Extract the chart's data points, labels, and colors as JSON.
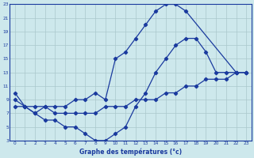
{
  "xlabel": "Graphe des températures (°c)",
  "bg_color": "#cde8ec",
  "line_color": "#1a3a9e",
  "grid_color": "#aac8cc",
  "xlim": [
    -0.5,
    23.5
  ],
  "ylim": [
    3,
    23
  ],
  "xticks": [
    0,
    1,
    2,
    3,
    4,
    5,
    6,
    7,
    8,
    9,
    10,
    11,
    12,
    13,
    14,
    15,
    16,
    17,
    18,
    19,
    20,
    21,
    22,
    23
  ],
  "yticks": [
    3,
    5,
    7,
    9,
    11,
    13,
    15,
    17,
    19,
    21,
    23
  ],
  "line1_x": [
    0,
    1,
    2,
    3,
    4,
    5,
    6,
    7,
    8,
    9,
    10,
    11,
    12,
    13,
    14,
    15,
    16,
    17,
    22,
    23
  ],
  "line1_y": [
    10,
    8,
    8,
    8,
    8,
    8,
    9,
    9,
    10,
    9,
    15,
    16,
    18,
    20,
    22,
    23,
    23,
    22,
    13,
    13
  ],
  "line2_x": [
    0,
    1,
    2,
    3,
    4,
    5,
    6,
    7,
    8,
    9,
    10,
    11,
    12,
    13,
    14,
    15,
    16,
    17,
    18,
    19,
    20,
    21,
    22,
    23
  ],
  "line2_y": [
    8,
    8,
    7,
    8,
    7,
    7,
    7,
    7,
    7,
    8,
    8,
    8,
    9,
    9,
    9,
    10,
    10,
    11,
    11,
    12,
    12,
    12,
    13,
    13
  ],
  "line3_x": [
    0,
    1,
    2,
    3,
    4,
    5,
    6,
    7,
    8,
    9,
    10,
    11,
    12,
    13,
    14,
    15,
    16,
    17,
    18,
    19,
    20,
    21,
    22,
    23
  ],
  "line3_y": [
    9,
    8,
    7,
    6,
    6,
    5,
    5,
    4,
    3,
    3,
    4,
    5,
    8,
    10,
    13,
    15,
    17,
    18,
    18,
    16,
    13,
    13,
    13,
    13
  ]
}
